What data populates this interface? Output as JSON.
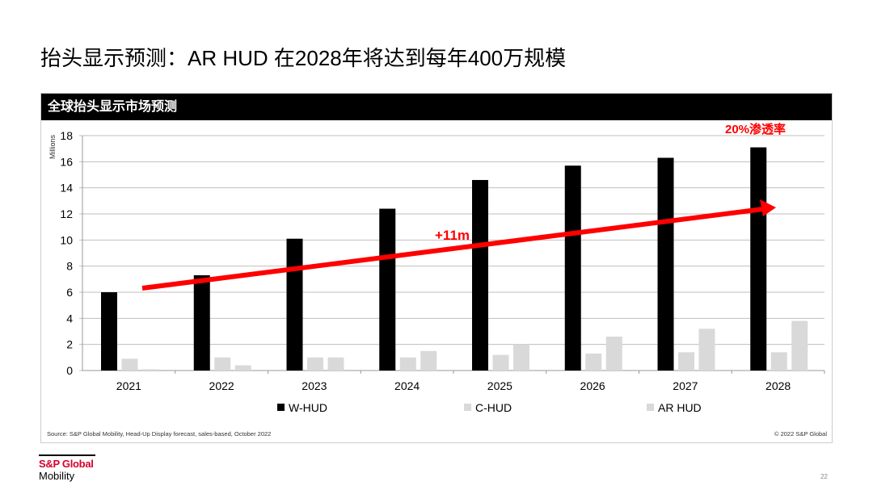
{
  "title": "抬头显示预测：AR HUD 在2028年将达到每年400万规模",
  "panel_title": "全球抬头显示市场预测",
  "chart_data": {
    "type": "bar",
    "categories": [
      "2021",
      "2022",
      "2023",
      "2024",
      "2025",
      "2026",
      "2027",
      "2028"
    ],
    "series": [
      {
        "name": "W-HUD",
        "color": "#000000",
        "values": [
          6.0,
          7.3,
          10.1,
          12.4,
          14.6,
          15.7,
          16.3,
          17.1
        ]
      },
      {
        "name": "C-HUD",
        "color": "#d9d9d9",
        "values": [
          0.9,
          1.0,
          1.0,
          1.0,
          1.2,
          1.3,
          1.4,
          1.4
        ]
      },
      {
        "name": "AR HUD",
        "color": "#d9d9d9",
        "values": [
          0.1,
          0.4,
          1.0,
          1.5,
          2.0,
          2.6,
          3.2,
          3.8
        ]
      }
    ],
    "ylabel": "Millions",
    "ylim": [
      0,
      18
    ],
    "yticks": [
      "0",
      "2",
      "4",
      "6",
      "8",
      "10",
      "12",
      "14",
      "16",
      "18"
    ],
    "grid": true,
    "legend": "bottom",
    "annotations": {
      "arrow_label": "+11m",
      "penetration_label": "20%渗透率",
      "arrow_color": "#ff0000"
    }
  },
  "source": "Source: S&P Global Mobility, Head-Up Display forecast, sales-based,  October 2022",
  "copyright": "© 2022 S&P Global",
  "logo": {
    "line1": "S&P Global",
    "line2": "Mobility"
  },
  "page_number": "22"
}
